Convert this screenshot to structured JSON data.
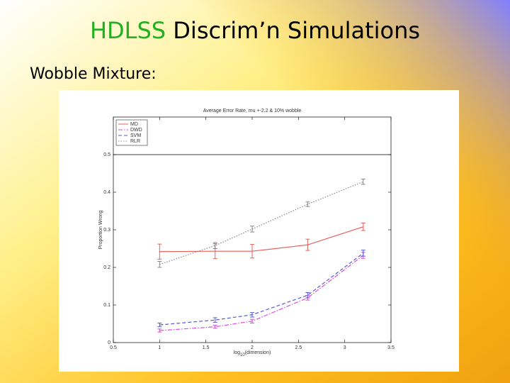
{
  "slide": {
    "title_highlight": "HDLSS",
    "title_rest": "Discrim’n Simulations",
    "subtitle": "Wobble Mixture:"
  },
  "chart_data": {
    "type": "line",
    "title": "Average Error Rate, mu +-2.2 & 10% wobble",
    "xlabel": {
      "base": "log",
      "sub": "10",
      "rest": "(dimension)"
    },
    "ylabel": "Proportion Wrong",
    "x": [
      1,
      1.6,
      2,
      2.6,
      3.2
    ],
    "series": [
      {
        "name": "MD",
        "color": "#e8605c",
        "style": "solid",
        "values": [
          0.242,
          0.243,
          0.243,
          0.26,
          0.308
        ],
        "errors": [
          0.02,
          0.02,
          0.018,
          0.015,
          0.01
        ]
      },
      {
        "name": "DWD",
        "color": "#d94fd9",
        "style": "dashdot",
        "values": [
          0.032,
          0.042,
          0.057,
          0.119,
          0.232
        ],
        "errors": [
          0.004,
          0.004,
          0.005,
          0.006,
          0.008
        ]
      },
      {
        "name": "SVM",
        "color": "#5a5ad8",
        "style": "dashed",
        "values": [
          0.047,
          0.06,
          0.074,
          0.126,
          0.238
        ],
        "errors": [
          0.005,
          0.006,
          0.006,
          0.007,
          0.008
        ]
      },
      {
        "name": "RLR",
        "color": "#888888",
        "style": "dotted",
        "values": [
          0.208,
          0.258,
          0.302,
          0.368,
          0.428
        ],
        "errors": [
          0.008,
          0.008,
          0.008,
          0.006,
          0.007
        ]
      }
    ],
    "xlim": [
      0.5,
      3.5
    ],
    "xticks": [
      0.5,
      1,
      1.5,
      2,
      2.5,
      3,
      3.5
    ],
    "ylim": [
      0,
      0.6
    ],
    "yticks": [
      0,
      0.1,
      0.2,
      0.3,
      0.4,
      0.5
    ],
    "hline": 0.5,
    "legend": "upper-left"
  }
}
